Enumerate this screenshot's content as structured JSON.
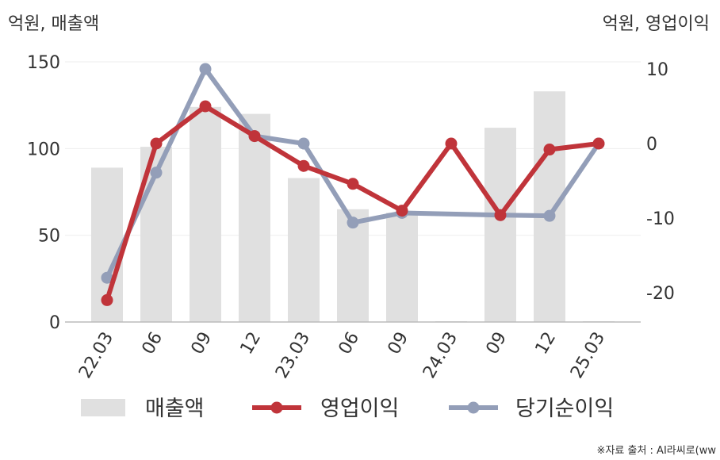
{
  "chart_data": {
    "type": "bar+line",
    "categories": [
      "22.03",
      "06",
      "09",
      "12",
      "23.03",
      "06",
      "09",
      "24.03",
      "09",
      "12",
      "25.03"
    ],
    "left_axis": {
      "label": "억원, 매출액",
      "ylim": [
        0,
        150
      ],
      "ticks": [
        "150",
        "100",
        "50",
        "0"
      ],
      "tick_values": [
        150,
        100,
        50,
        0
      ]
    },
    "right_axis": {
      "label": "억원, 영업이익",
      "ylim": [
        -24,
        10
      ],
      "ticks": [
        "10",
        "0",
        "-10",
        "-20"
      ],
      "tick_values": [
        10,
        0,
        -10,
        -20
      ]
    },
    "series": [
      {
        "name": "매출액",
        "kind": "bar",
        "axis": "left",
        "color": "#e0e0e0",
        "values": [
          89,
          101,
          124,
          120,
          83,
          65,
          63,
          0,
          112,
          133,
          0
        ]
      },
      {
        "name": "영업이익",
        "kind": "line",
        "axis": "right",
        "color": "#c0343a",
        "values": [
          -21,
          0,
          5,
          1,
          -3,
          -5.4,
          -9,
          0,
          -9.6,
          -0.8,
          0
        ]
      },
      {
        "name": "당기순이익",
        "kind": "line",
        "axis": "right",
        "color": "#939eb8",
        "values": [
          -18,
          -3.9,
          10,
          1,
          0,
          -10.6,
          -9.3,
          null,
          -9.6,
          -9.7,
          0
        ]
      }
    ],
    "grid": true,
    "legend_position": "bottom"
  },
  "source": "※자료 출처 : AI라씨로(ww"
}
